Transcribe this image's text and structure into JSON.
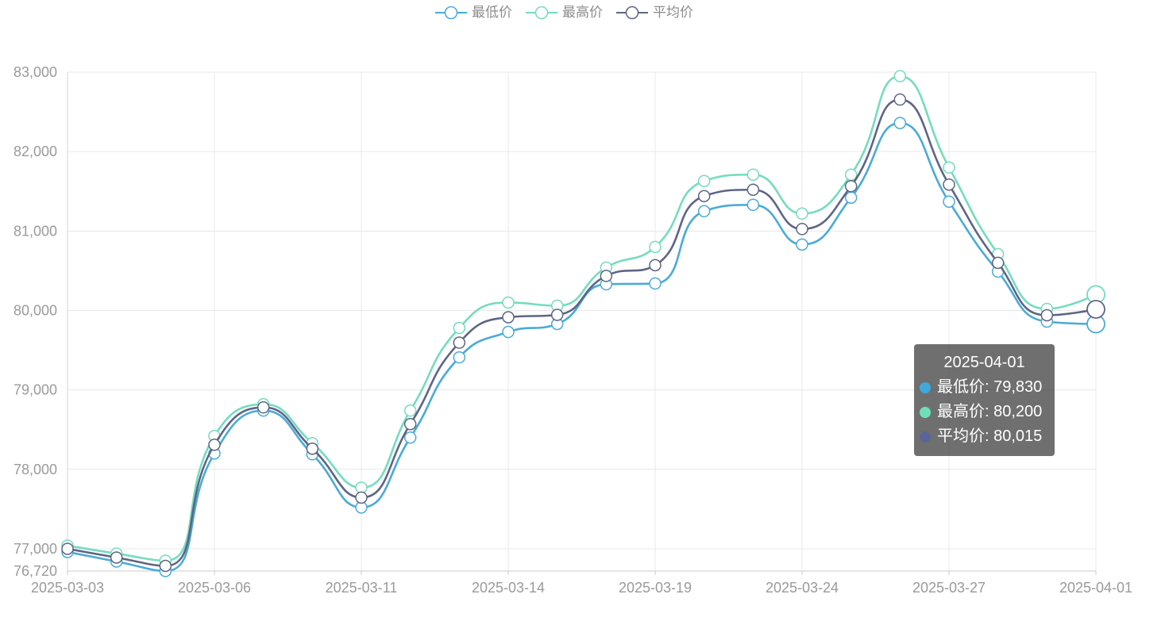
{
  "chart_data": {
    "type": "line",
    "smooth": true,
    "grid": true,
    "legend": "top",
    "categories": [
      "2025-03-03",
      "",
      "",
      "2025-03-06",
      "",
      "",
      "2025-03-11",
      "",
      "",
      "2025-03-14",
      "",
      "",
      "2025-03-19",
      "",
      "",
      "2025-03-24",
      "",
      "",
      "2025-03-27",
      "",
      "",
      "2025-04-01"
    ],
    "series": [
      {
        "name": "最低价",
        "color": "#4aabd6",
        "values": [
          76960,
          76840,
          76720,
          78200,
          78740,
          78190,
          77520,
          78400,
          79410,
          79730,
          79830,
          80330,
          80340,
          81250,
          81330,
          80830,
          81420,
          82360,
          81370,
          80490,
          79860,
          79830
        ]
      },
      {
        "name": "最高价",
        "color": "#74dcbd",
        "values": [
          77040,
          76940,
          76850,
          78420,
          78820,
          78330,
          77770,
          78740,
          79780,
          80100,
          80060,
          80540,
          80800,
          81630,
          81710,
          81220,
          81710,
          82950,
          81800,
          80710,
          80020,
          80200
        ]
      },
      {
        "name": "平均价",
        "color": "#5e6585",
        "values": [
          77000,
          76890,
          76785,
          78310,
          78780,
          78260,
          77645,
          78570,
          79595,
          79915,
          79945,
          80435,
          80570,
          81440,
          81520,
          81025,
          81565,
          82655,
          81585,
          80600,
          79940,
          80015
        ]
      }
    ],
    "ylim": [
      76720,
      83000
    ],
    "y_tick_labels": [
      "76,720",
      "77,000",
      "78,000",
      "79,000",
      "80,000",
      "81,000",
      "82,000",
      "83,000"
    ]
  },
  "tooltip": {
    "title": "2025-04-01",
    "rows": [
      {
        "text": "最低价: 79,830",
        "color": "#3fa9de"
      },
      {
        "text": "最高价: 80,200",
        "color": "#6ee0b7"
      },
      {
        "text": "平均价: 80,015",
        "color": "#5b6497"
      }
    ]
  }
}
